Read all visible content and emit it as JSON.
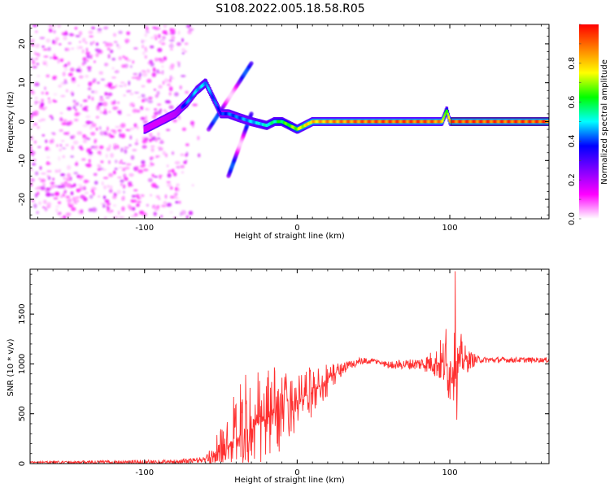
{
  "title": "S108.2022.005.18.58.R05",
  "chart_data": [
    {
      "type": "heatmap",
      "xlabel": "Height of straight line (km)",
      "ylabel": "Frequency (Hz)",
      "xlim": [
        -175,
        165
      ],
      "ylim": [
        -25,
        25
      ],
      "x_ticks": [
        -100,
        0,
        100
      ],
      "y_ticks": [
        -20,
        -10,
        0,
        10,
        20
      ],
      "colorbar": {
        "label": "Normalized spectral amplitude",
        "range": [
          0,
          1
        ],
        "ticks": [
          0.0,
          0.2,
          0.4,
          0.6,
          0.8
        ],
        "colors": [
          "#ffffff",
          "#ff00ff",
          "#8000ff",
          "#0000ff",
          "#00ffff",
          "#00ff00",
          "#ffff00",
          "#ff8000",
          "#ff0000"
        ]
      },
      "carrier_line": {
        "x": [
          -100,
          -90,
          -80,
          -72,
          -66,
          -60,
          -50,
          -45,
          -38,
          -30,
          -20,
          -15,
          -10,
          -5,
          0,
          5,
          10,
          20,
          40,
          60,
          80,
          90,
          95,
          98,
          100,
          120,
          140,
          165
        ],
        "freq": [
          -2,
          0,
          2,
          5,
          8,
          10,
          2,
          2,
          1,
          0,
          -1,
          0,
          0,
          -1,
          -2,
          -1,
          0,
          0,
          0,
          0,
          0,
          0,
          0,
          3,
          0,
          0,
          0,
          0
        ],
        "amplitude": [
          0.3,
          0.3,
          0.35,
          0.45,
          0.5,
          0.5,
          0.4,
          0.45,
          0.45,
          0.5,
          0.55,
          0.6,
          0.65,
          0.7,
          0.75,
          0.8,
          0.85,
          0.9,
          0.95,
          0.97,
          0.97,
          0.95,
          0.9,
          0.6,
          0.98,
          0.98,
          0.98,
          0.98
        ]
      },
      "streaks": [
        {
          "x": [
            -58,
            -30
          ],
          "freq": [
            -2,
            15
          ]
        },
        {
          "x": [
            -45,
            -30
          ],
          "freq": [
            -14,
            2
          ]
        }
      ],
      "noise_region": {
        "x": [
          -175,
          -72
        ],
        "amplitude": 0.15
      }
    },
    {
      "type": "line",
      "xlabel": "Height of straight line (km)",
      "ylabel": "SNR (10 * v/v)",
      "xlim": [
        -175,
        165
      ],
      "ylim": [
        0,
        1950
      ],
      "x_ticks": [
        -100,
        0,
        100
      ],
      "y_ticks": [
        0,
        500,
        1000,
        1500
      ],
      "color": "#ff3030",
      "trend_x": [
        -175,
        -80,
        -60,
        -50,
        -40,
        -30,
        -20,
        -10,
        0,
        10,
        20,
        30,
        40,
        50,
        60,
        80,
        95,
        100,
        105,
        110,
        130,
        165
      ],
      "trend_y": [
        15,
        15,
        40,
        120,
        250,
        350,
        450,
        550,
        620,
        720,
        850,
        960,
        1020,
        1030,
        990,
        1000,
        1010,
        950,
        1000,
        1040,
        1040,
        1040
      ],
      "noise_x": [
        -175,
        -60,
        -50,
        -40,
        -30,
        -20,
        -10,
        0,
        10,
        20,
        30,
        50,
        80,
        90,
        100,
        110,
        120,
        165
      ],
      "noise_amp": [
        8,
        30,
        200,
        400,
        500,
        420,
        300,
        220,
        200,
        150,
        60,
        25,
        60,
        120,
        320,
        120,
        30,
        25
      ],
      "spikes": [
        {
          "x": 103.5,
          "y": 1930
        },
        {
          "x": 104.5,
          "y": 440
        },
        {
          "x": 107.5,
          "y": 1300
        },
        {
          "x": 97.5,
          "y": 1350
        }
      ]
    }
  ]
}
